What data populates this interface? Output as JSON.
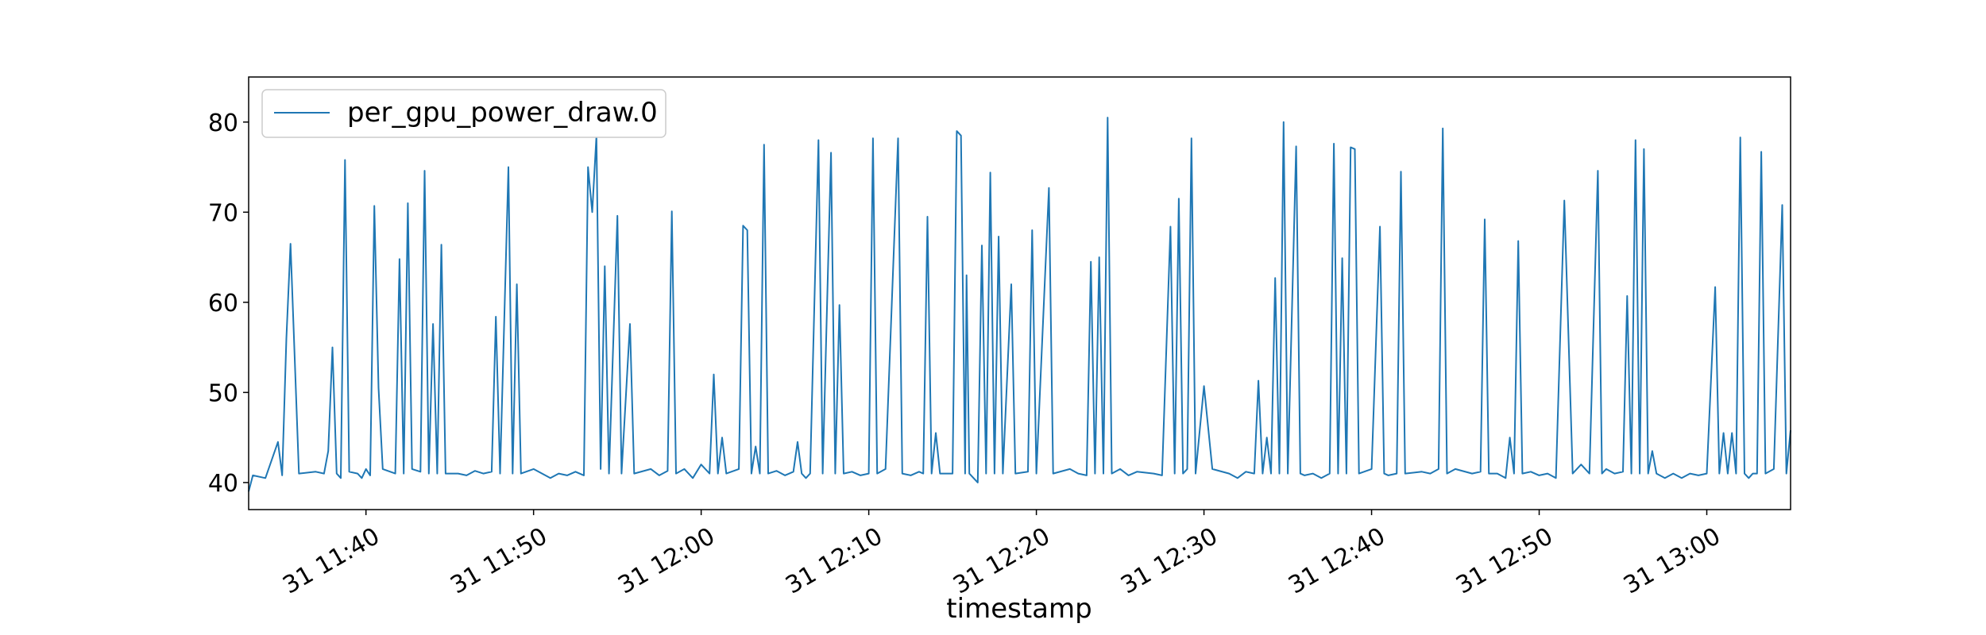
{
  "chart_data": {
    "type": "line",
    "title": "",
    "xlabel": "timestamp",
    "ylabel": "",
    "grid": false,
    "legend_position": "top-left",
    "x_range": [
      "31 11:33:00",
      "31 13:05:00"
    ],
    "ylim": [
      37,
      85
    ],
    "x_ticks": [
      {
        "label": "31 11:40",
        "time": "11:40"
      },
      {
        "label": "31 11:50",
        "time": "11:50"
      },
      {
        "label": "31 12:00",
        "time": "12:00"
      },
      {
        "label": "31 12:10",
        "time": "12:10"
      },
      {
        "label": "31 12:20",
        "time": "12:20"
      },
      {
        "label": "31 12:30",
        "time": "12:30"
      },
      {
        "label": "31 12:40",
        "time": "12:40"
      },
      {
        "label": "31 12:50",
        "time": "12:50"
      },
      {
        "label": "31 13:00",
        "time": "13:00"
      }
    ],
    "y_ticks": [
      40,
      50,
      60,
      70,
      80
    ],
    "series": [
      {
        "name": "per_gpu_power_draw.0",
        "color": "#1f77b4",
        "points": [
          [
            "11:33:00",
            39.0
          ],
          [
            "11:33:15",
            40.8
          ],
          [
            "11:34:00",
            40.5
          ],
          [
            "11:34:45",
            44.5
          ],
          [
            "11:35:00",
            40.8
          ],
          [
            "11:35:15",
            56.0
          ],
          [
            "11:35:30",
            66.5
          ],
          [
            "11:36:00",
            41.0
          ],
          [
            "11:37:00",
            41.2
          ],
          [
            "11:37:30",
            41.0
          ],
          [
            "11:37:45",
            43.5
          ],
          [
            "11:38:00",
            55.0
          ],
          [
            "11:38:15",
            41.0
          ],
          [
            "11:38:30",
            40.5
          ],
          [
            "11:38:45",
            75.8
          ],
          [
            "11:39:00",
            41.2
          ],
          [
            "11:39:30",
            41.0
          ],
          [
            "11:39:45",
            40.5
          ],
          [
            "11:40:00",
            41.5
          ],
          [
            "11:40:15",
            40.8
          ],
          [
            "11:40:30",
            70.7
          ],
          [
            "11:40:45",
            50.5
          ],
          [
            "11:41:00",
            41.5
          ],
          [
            "11:41:45",
            41.0
          ],
          [
            "11:42:00",
            64.8
          ],
          [
            "11:42:15",
            41.0
          ],
          [
            "11:42:30",
            71.0
          ],
          [
            "11:42:45",
            41.5
          ],
          [
            "11:43:15",
            41.2
          ],
          [
            "11:43:30",
            74.6
          ],
          [
            "11:43:45",
            41.0
          ],
          [
            "11:44:00",
            57.6
          ],
          [
            "11:44:15",
            41.0
          ],
          [
            "11:44:30",
            66.4
          ],
          [
            "11:44:45",
            41.0
          ],
          [
            "11:45:30",
            41.0
          ],
          [
            "11:46:00",
            40.8
          ],
          [
            "11:46:30",
            41.3
          ],
          [
            "11:47:00",
            41.0
          ],
          [
            "11:47:30",
            41.2
          ],
          [
            "11:47:45",
            58.4
          ],
          [
            "11:48:00",
            41.0
          ],
          [
            "11:48:30",
            75.0
          ],
          [
            "11:48:45",
            41.0
          ],
          [
            "11:49:00",
            62.0
          ],
          [
            "11:49:15",
            41.0
          ],
          [
            "11:50:00",
            41.5
          ],
          [
            "11:51:00",
            40.5
          ],
          [
            "11:51:30",
            41.0
          ],
          [
            "11:52:00",
            40.8
          ],
          [
            "11:52:30",
            41.2
          ],
          [
            "11:53:00",
            40.8
          ],
          [
            "11:53:15",
            75.0
          ],
          [
            "11:53:30",
            70.0
          ],
          [
            "11:53:45",
            78.5
          ],
          [
            "11:54:00",
            41.5
          ],
          [
            "11:54:15",
            64.0
          ],
          [
            "11:54:30",
            41.0
          ],
          [
            "11:55:00",
            69.6
          ],
          [
            "11:55:15",
            41.0
          ],
          [
            "11:55:45",
            57.6
          ],
          [
            "11:56:00",
            41.0
          ],
          [
            "11:57:00",
            41.5
          ],
          [
            "11:57:30",
            40.8
          ],
          [
            "11:58:00",
            41.3
          ],
          [
            "11:58:15",
            70.1
          ],
          [
            "11:58:30",
            41.0
          ],
          [
            "11:59:00",
            41.5
          ],
          [
            "11:59:30",
            40.5
          ],
          [
            "12:00:00",
            42.0
          ],
          [
            "12:00:30",
            41.0
          ],
          [
            "12:00:45",
            52.0
          ],
          [
            "12:01:00",
            41.0
          ],
          [
            "12:01:15",
            45.0
          ],
          [
            "12:01:30",
            41.0
          ],
          [
            "12:02:15",
            41.5
          ],
          [
            "12:02:30",
            68.5
          ],
          [
            "12:02:45",
            68.0
          ],
          [
            "12:03:00",
            41.0
          ],
          [
            "12:03:15",
            44.0
          ],
          [
            "12:03:30",
            41.0
          ],
          [
            "12:03:45",
            77.5
          ],
          [
            "12:04:00",
            41.0
          ],
          [
            "12:04:30",
            41.3
          ],
          [
            "12:05:00",
            40.8
          ],
          [
            "12:05:30",
            41.2
          ],
          [
            "12:05:45",
            44.5
          ],
          [
            "12:06:00",
            41.0
          ],
          [
            "12:06:15",
            40.5
          ],
          [
            "12:06:30",
            41.0
          ],
          [
            "12:07:00",
            78.0
          ],
          [
            "12:07:15",
            41.0
          ],
          [
            "12:07:45",
            76.6
          ],
          [
            "12:08:00",
            41.0
          ],
          [
            "12:08:15",
            59.7
          ],
          [
            "12:08:30",
            41.0
          ],
          [
            "12:09:00",
            41.2
          ],
          [
            "12:09:30",
            40.8
          ],
          [
            "12:10:00",
            41.0
          ],
          [
            "12:10:15",
            78.2
          ],
          [
            "12:10:30",
            41.0
          ],
          [
            "12:11:00",
            41.5
          ],
          [
            "12:11:45",
            78.2
          ],
          [
            "12:12:00",
            41.0
          ],
          [
            "12:12:30",
            40.8
          ],
          [
            "12:13:00",
            41.2
          ],
          [
            "12:13:15",
            41.0
          ],
          [
            "12:13:30",
            69.5
          ],
          [
            "12:13:45",
            41.0
          ],
          [
            "12:14:00",
            45.5
          ],
          [
            "12:14:15",
            41.0
          ],
          [
            "12:15:00",
            41.0
          ],
          [
            "12:15:15",
            79.0
          ],
          [
            "12:15:30",
            78.5
          ],
          [
            "12:15:45",
            41.0
          ],
          [
            "12:15:50",
            63.0
          ],
          [
            "12:16:00",
            41.0
          ],
          [
            "12:16:30",
            40.0
          ],
          [
            "12:16:45",
            66.3
          ],
          [
            "12:17:00",
            41.0
          ],
          [
            "12:17:15",
            74.4
          ],
          [
            "12:17:30",
            41.0
          ],
          [
            "12:17:45",
            67.3
          ],
          [
            "12:18:00",
            41.0
          ],
          [
            "12:18:30",
            62.0
          ],
          [
            "12:18:45",
            41.0
          ],
          [
            "12:19:30",
            41.2
          ],
          [
            "12:19:45",
            68.0
          ],
          [
            "12:20:00",
            41.0
          ],
          [
            "12:20:45",
            72.7
          ],
          [
            "12:21:00",
            41.0
          ],
          [
            "12:22:00",
            41.5
          ],
          [
            "12:22:30",
            41.0
          ],
          [
            "12:23:00",
            40.8
          ],
          [
            "12:23:15",
            64.5
          ],
          [
            "12:23:30",
            41.0
          ],
          [
            "12:23:45",
            65.0
          ],
          [
            "12:24:00",
            41.0
          ],
          [
            "12:24:15",
            80.5
          ],
          [
            "12:24:30",
            41.0
          ],
          [
            "12:25:00",
            41.5
          ],
          [
            "12:25:30",
            40.8
          ],
          [
            "12:26:00",
            41.2
          ],
          [
            "12:27:00",
            41.0
          ],
          [
            "12:27:30",
            40.8
          ],
          [
            "12:28:00",
            68.4
          ],
          [
            "12:28:15",
            41.0
          ],
          [
            "12:28:30",
            71.5
          ],
          [
            "12:28:45",
            41.0
          ],
          [
            "12:29:00",
            41.5
          ],
          [
            "12:29:15",
            78.2
          ],
          [
            "12:29:30",
            41.0
          ],
          [
            "12:30:00",
            50.7
          ],
          [
            "12:30:30",
            41.5
          ],
          [
            "12:31:30",
            41.0
          ],
          [
            "12:32:00",
            40.5
          ],
          [
            "12:32:30",
            41.2
          ],
          [
            "12:33:00",
            41.0
          ],
          [
            "12:33:15",
            51.3
          ],
          [
            "12:33:30",
            41.0
          ],
          [
            "12:33:45",
            45.0
          ],
          [
            "12:34:00",
            41.0
          ],
          [
            "12:34:15",
            62.7
          ],
          [
            "12:34:30",
            41.0
          ],
          [
            "12:34:45",
            80.0
          ],
          [
            "12:35:00",
            41.0
          ],
          [
            "12:35:30",
            77.3
          ],
          [
            "12:35:45",
            41.0
          ],
          [
            "12:36:00",
            40.8
          ],
          [
            "12:36:30",
            41.0
          ],
          [
            "12:37:00",
            40.5
          ],
          [
            "12:37:30",
            41.0
          ],
          [
            "12:37:45",
            77.6
          ],
          [
            "12:38:00",
            41.0
          ],
          [
            "12:38:15",
            64.9
          ],
          [
            "12:38:30",
            41.0
          ],
          [
            "12:38:45",
            77.2
          ],
          [
            "12:39:00",
            77.0
          ],
          [
            "12:39:15",
            41.0
          ],
          [
            "12:40:00",
            41.5
          ],
          [
            "12:40:30",
            68.4
          ],
          [
            "12:40:45",
            41.0
          ],
          [
            "12:41:00",
            40.8
          ],
          [
            "12:41:30",
            41.0
          ],
          [
            "12:41:45",
            74.5
          ],
          [
            "12:42:00",
            41.0
          ],
          [
            "12:43:00",
            41.2
          ],
          [
            "12:43:30",
            41.0
          ],
          [
            "12:44:00",
            41.5
          ],
          [
            "12:44:15",
            79.3
          ],
          [
            "12:44:30",
            41.0
          ],
          [
            "12:45:00",
            41.5
          ],
          [
            "12:46:00",
            41.0
          ],
          [
            "12:46:30",
            41.2
          ],
          [
            "12:46:45",
            69.2
          ],
          [
            "12:47:00",
            41.0
          ],
          [
            "12:47:30",
            41.0
          ],
          [
            "12:48:00",
            40.5
          ],
          [
            "12:48:15",
            45.0
          ],
          [
            "12:48:30",
            41.0
          ],
          [
            "12:48:45",
            66.8
          ],
          [
            "12:49:00",
            41.0
          ],
          [
            "12:49:30",
            41.2
          ],
          [
            "12:50:00",
            40.8
          ],
          [
            "12:50:30",
            41.0
          ],
          [
            "12:51:00",
            40.5
          ],
          [
            "12:51:30",
            71.3
          ],
          [
            "12:52:00",
            41.0
          ],
          [
            "12:52:30",
            42.0
          ],
          [
            "12:53:00",
            41.0
          ],
          [
            "12:53:30",
            74.6
          ],
          [
            "12:53:45",
            41.0
          ],
          [
            "12:54:00",
            41.5
          ],
          [
            "12:54:30",
            41.0
          ],
          [
            "12:55:00",
            41.2
          ],
          [
            "12:55:15",
            60.7
          ],
          [
            "12:55:30",
            41.0
          ],
          [
            "12:55:45",
            78.0
          ],
          [
            "12:56:00",
            41.0
          ],
          [
            "12:56:15",
            77.0
          ],
          [
            "12:56:30",
            41.0
          ],
          [
            "12:56:45",
            43.5
          ],
          [
            "12:57:00",
            41.0
          ],
          [
            "12:57:30",
            40.5
          ],
          [
            "12:58:00",
            41.0
          ],
          [
            "12:58:30",
            40.5
          ],
          [
            "12:59:00",
            41.0
          ],
          [
            "12:59:30",
            40.8
          ],
          [
            "13:00:00",
            41.0
          ],
          [
            "13:00:30",
            61.7
          ],
          [
            "13:00:45",
            41.0
          ],
          [
            "13:01:00",
            45.5
          ],
          [
            "13:01:15",
            41.0
          ],
          [
            "13:01:30",
            45.5
          ],
          [
            "13:01:45",
            41.0
          ],
          [
            "13:02:00",
            78.3
          ],
          [
            "13:02:15",
            41.0
          ],
          [
            "13:02:30",
            40.5
          ],
          [
            "13:02:45",
            41.0
          ],
          [
            "13:03:00",
            41.0
          ],
          [
            "13:03:15",
            76.7
          ],
          [
            "13:03:30",
            41.0
          ],
          [
            "13:04:00",
            41.5
          ],
          [
            "13:04:30",
            70.8
          ],
          [
            "13:04:45",
            41.0
          ],
          [
            "13:05:00",
            45.8
          ]
        ]
      }
    ]
  }
}
